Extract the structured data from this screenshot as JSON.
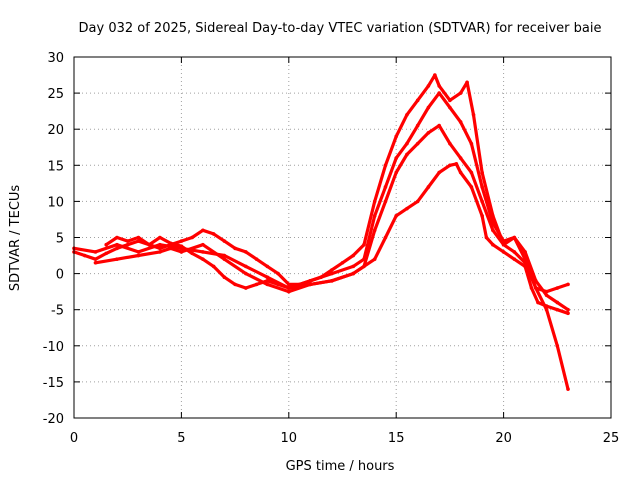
{
  "chart_data": {
    "type": "line",
    "title": "Day 032 of 2025, Sidereal Day-to-day VTEC variation (SDTVAR) for receiver baie",
    "xlabel": "GPS time / hours",
    "ylabel": "SDTVAR / TECUs",
    "xlim": [
      0,
      25
    ],
    "ylim": [
      -20,
      30
    ],
    "xticks": [
      0,
      5,
      10,
      15,
      20,
      25
    ],
    "yticks": [
      30,
      25,
      20,
      15,
      10,
      5,
      0,
      -5,
      -10,
      -15,
      -20
    ],
    "grid": true,
    "legend": "none",
    "colors": {
      "series": "#ff0000",
      "grid": "#a0a0a0",
      "axes": "#000000"
    },
    "series": [
      {
        "name": "trace-1",
        "x": [
          0,
          0.5,
          1,
          1.5,
          2,
          2.5,
          3,
          3.5,
          4,
          4.5,
          5,
          5.5,
          6,
          6.5,
          7,
          7.5,
          8,
          8.5,
          9,
          9.5,
          10,
          10.5,
          11,
          11.5,
          12,
          12.5,
          13,
          13.5,
          14,
          14.5,
          15,
          15.5,
          16,
          16.5,
          16.8,
          17,
          17.5,
          18,
          18.3,
          18.6,
          19,
          19.5,
          20,
          20.5,
          21,
          21.5,
          22,
          22.5,
          23
        ],
        "y": [
          3,
          2.5,
          2,
          2.8,
          3.5,
          4,
          4.5,
          4,
          3.5,
          4,
          4.5,
          5,
          6,
          5.5,
          4.5,
          3.5,
          3,
          2,
          1,
          0,
          -1.5,
          -1.5,
          -1,
          -0.5,
          0.5,
          1.5,
          2.5,
          4,
          10,
          15,
          19,
          22,
          24,
          26,
          27.5,
          26,
          24,
          25,
          26.5,
          22,
          14,
          8,
          4,
          5,
          3,
          -1,
          -3,
          -4,
          -5
        ]
      },
      {
        "name": "trace-2",
        "x": [
          0,
          1,
          2,
          3,
          4,
          5,
          6,
          7,
          8,
          9,
          10,
          11,
          12,
          13,
          13.5,
          14,
          14.5,
          15,
          15.5,
          16,
          16.5,
          17,
          17.5,
          18,
          18.5,
          19,
          19.5,
          20,
          20.5,
          21,
          21.5,
          22,
          22.5,
          23
        ],
        "y": [
          3.5,
          3,
          4,
          3,
          4,
          3.5,
          3,
          2.5,
          1,
          -0.5,
          -2,
          -1,
          0,
          1,
          2,
          8,
          12,
          16,
          18,
          20.5,
          23,
          25,
          23,
          21,
          18,
          12,
          7,
          4.5,
          5,
          2,
          -2,
          -2.5,
          -2,
          -1.5
        ]
      },
      {
        "name": "trace-3",
        "x": [
          1,
          2,
          3,
          4,
          4.5,
          5,
          6,
          7,
          8,
          9,
          10,
          11,
          12,
          13,
          13.5,
          14,
          14.5,
          15,
          15.5,
          16,
          16.5,
          17,
          17.5,
          18,
          18.5,
          19,
          19.5,
          20,
          20.5,
          21,
          21.5,
          22,
          22.5,
          23
        ],
        "y": [
          1.5,
          2,
          2.5,
          3,
          3.5,
          3,
          4,
          2,
          0,
          -1.5,
          -2.5,
          -1.5,
          -1,
          0,
          1,
          6,
          10,
          14,
          16.5,
          18,
          19.5,
          20.5,
          18,
          16,
          14,
          10,
          6,
          4,
          3,
          1.5,
          -2,
          -5,
          -10,
          -16
        ]
      },
      {
        "name": "trace-4",
        "x": [
          1.5,
          2,
          2.5,
          3,
          3.5,
          4,
          4.5,
          5,
          5.5,
          6,
          6.5,
          7,
          7.5,
          8,
          8.5,
          9,
          9.5,
          10,
          11,
          12,
          13,
          14,
          14.5,
          15,
          15.5,
          16,
          16.5,
          17,
          17.5,
          17.8,
          18,
          18.5,
          19,
          19.2,
          19.5,
          20,
          20.5,
          21,
          21.3,
          21.6,
          22,
          22.5,
          23
        ],
        "y": [
          4,
          5,
          4.5,
          5,
          4,
          5,
          4.2,
          3.8,
          2.8,
          2,
          1,
          -0.5,
          -1.5,
          -2,
          -1.5,
          -1,
          -1.5,
          -2,
          -1.5,
          -1,
          0,
          2,
          5,
          8,
          9,
          10,
          12,
          14,
          15,
          15.2,
          14,
          12,
          8,
          5,
          4,
          3,
          2,
          1,
          -2,
          -4,
          -4.5,
          -5,
          -5.5
        ]
      }
    ]
  }
}
